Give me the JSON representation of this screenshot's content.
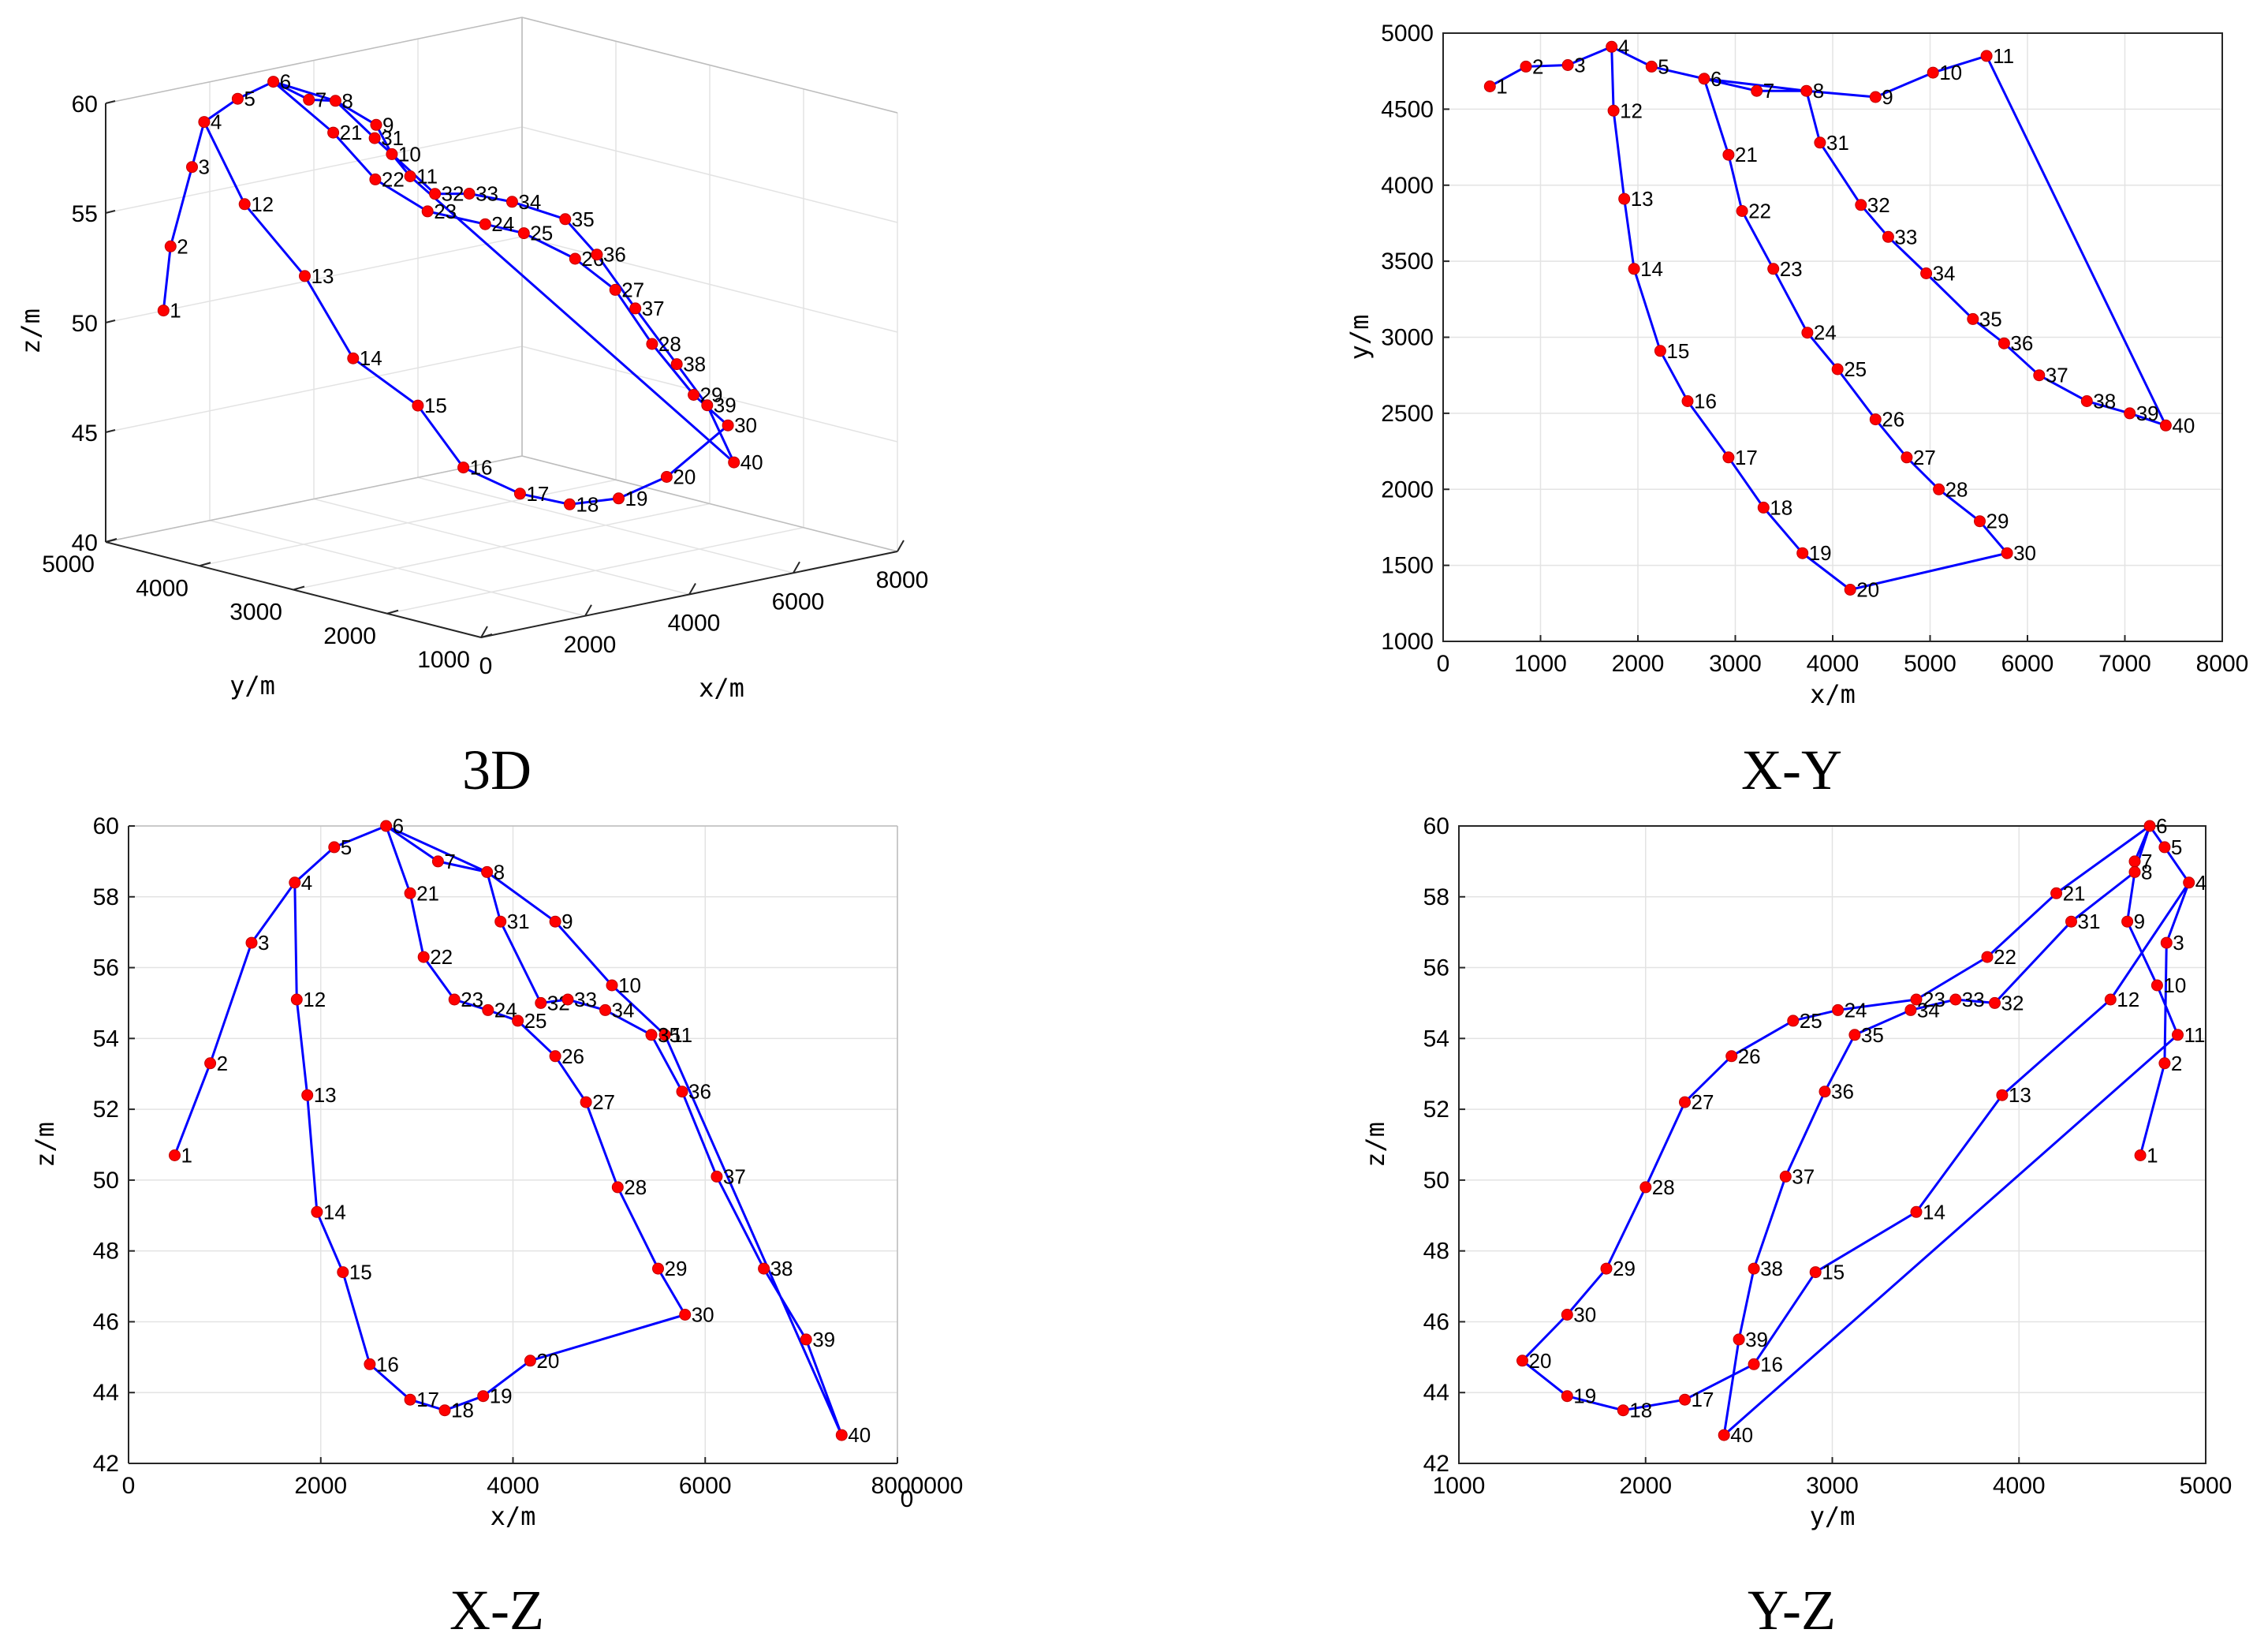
{
  "chart_data": [
    {
      "type": "line",
      "panel": "3D",
      "title": "3D",
      "xlabel": "x/m",
      "ylabel": "y/m",
      "zlabel": "z/m",
      "xlim": [
        0,
        8000
      ],
      "ylim": [
        1000,
        5000
      ],
      "zlim": [
        40,
        60
      ],
      "xticks": [
        "0",
        "2000",
        "4000",
        "6000",
        "8000"
      ],
      "yticks": [
        "5000",
        "4000",
        "3000",
        "2000",
        "1000"
      ],
      "zticks": [
        "40",
        "45",
        "50",
        "55",
        "60"
      ]
    },
    {
      "type": "line",
      "panel": "X-Y",
      "title": "X-Y",
      "xlabel": "x/m",
      "ylabel": "y/m",
      "xlim": [
        0,
        8000
      ],
      "ylim": [
        1000,
        5000
      ],
      "xticks": [
        "0",
        "1000",
        "2000",
        "3000",
        "4000",
        "5000",
        "6000",
        "7000",
        "8000"
      ],
      "yticks": [
        "1000",
        "1500",
        "2000",
        "2500",
        "3000",
        "3500",
        "4000",
        "4500",
        "5000"
      ]
    },
    {
      "type": "line",
      "panel": "X-Z",
      "title": "X-Z",
      "xlabel": "x/m",
      "ylabel": "z/m",
      "xlim": [
        0,
        8000
      ],
      "ylim": [
        42,
        60
      ],
      "xticks": [
        "0",
        "2000",
        "4000",
        "6000",
        "8000"
      ],
      "yticks": [
        "42",
        "44",
        "46",
        "48",
        "50",
        "52",
        "54",
        "56",
        "58",
        "60"
      ],
      "corner_text": "0000",
      "corner_zero": "0"
    },
    {
      "type": "line",
      "panel": "Y-Z",
      "title": "Y-Z",
      "xlabel": "y/m",
      "ylabel": "z/m",
      "xlim": [
        1000,
        5000
      ],
      "ylim": [
        42,
        60
      ],
      "xticks": [
        "1000",
        "2000",
        "3000",
        "4000",
        "5000"
      ],
      "yticks": [
        "42",
        "44",
        "46",
        "48",
        "50",
        "52",
        "54",
        "56",
        "58",
        "60"
      ]
    }
  ],
  "points": {
    "ids": [
      "1",
      "2",
      "3",
      "4",
      "5",
      "6",
      "7",
      "8",
      "9",
      "10",
      "11",
      "12",
      "13",
      "14",
      "15",
      "16",
      "17",
      "18",
      "19",
      "20",
      "21",
      "22",
      "23",
      "24",
      "25",
      "26",
      "27",
      "28",
      "29",
      "30",
      "31",
      "32",
      "33",
      "34",
      "35",
      "36",
      "37",
      "38",
      "39",
      "40"
    ],
    "x": [
      480,
      850,
      1280,
      1730,
      2140,
      2680,
      3220,
      3730,
      4440,
      5030,
      5580,
      1750,
      1860,
      1960,
      2230,
      2510,
      2930,
      3290,
      3690,
      4180,
      2930,
      3070,
      3390,
      3740,
      4050,
      4440,
      4760,
      5090,
      5510,
      5790,
      3870,
      4290,
      4570,
      4960,
      5440,
      5760,
      6120,
      6610,
      7050,
      7420
    ],
    "y": [
      4650,
      4780,
      4790,
      4910,
      4780,
      4700,
      4620,
      4620,
      4580,
      4740,
      4850,
      4490,
      3910,
      3450,
      2910,
      2580,
      2210,
      1880,
      1580,
      1340,
      4200,
      3830,
      3450,
      3030,
      2790,
      2460,
      2210,
      2000,
      1790,
      1580,
      4280,
      3870,
      3660,
      3420,
      3120,
      2960,
      2750,
      2580,
      2500,
      2420
    ],
    "z": [
      50.7,
      53.3,
      56.7,
      58.4,
      59.4,
      60.0,
      59.0,
      58.7,
      57.3,
      55.5,
      54.1,
      55.1,
      52.4,
      49.1,
      47.4,
      44.8,
      43.8,
      43.5,
      43.9,
      44.9,
      58.1,
      56.3,
      55.1,
      54.8,
      54.5,
      53.5,
      52.2,
      49.8,
      47.5,
      46.2,
      57.3,
      55.0,
      55.1,
      54.8,
      54.1,
      52.5,
      50.1,
      47.5,
      45.5,
      42.8
    ],
    "path_order": [
      "1",
      "2",
      "3",
      "4",
      "5",
      "6",
      "7",
      "8",
      "9",
      "10",
      "11",
      "40",
      "39",
      "38",
      "37",
      "36",
      "35",
      "34",
      "33",
      "32",
      "31",
      "8",
      "6",
      "21",
      "22",
      "23",
      "24",
      "25",
      "26",
      "27",
      "28",
      "29",
      "30",
      "20",
      "19",
      "18",
      "17",
      "16",
      "15",
      "14",
      "13",
      "12",
      "4"
    ]
  }
}
